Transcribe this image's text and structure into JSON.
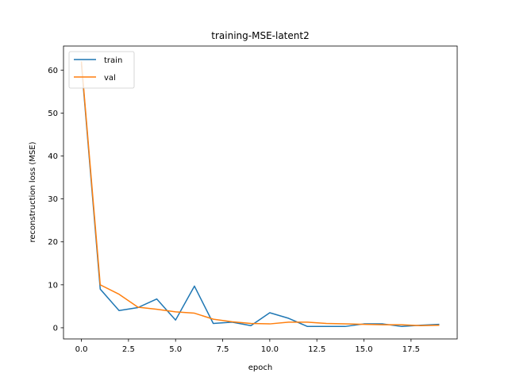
{
  "chart_data": {
    "type": "line",
    "title": "training-MSE-latent2",
    "xlabel": "epoch",
    "ylabel": "reconstruction loss (MSE)",
    "xlim": [
      -0.95,
      19.95
    ],
    "ylim": [
      -2.6,
      65.6
    ],
    "xticks": [
      0,
      2.5,
      5,
      7.5,
      10,
      12.5,
      15,
      17.5
    ],
    "xtick_labels": [
      "0.0",
      "2.5",
      "5.0",
      "7.5",
      "10.0",
      "12.5",
      "15.0",
      "17.5"
    ],
    "yticks": [
      0,
      10,
      20,
      30,
      40,
      50,
      60
    ],
    "ytick_labels": [
      "0",
      "10",
      "20",
      "30",
      "40",
      "50",
      "60"
    ],
    "grid": false,
    "legend_position": "upper-left",
    "x": [
      0,
      1,
      2,
      3,
      4,
      5,
      6,
      7,
      8,
      9,
      10,
      11,
      12,
      13,
      14,
      15,
      16,
      17,
      18,
      19
    ],
    "series": [
      {
        "name": "train",
        "color": "#1f77b4",
        "values": [
          61.5,
          9.0,
          4.0,
          4.7,
          6.7,
          1.8,
          9.7,
          1.0,
          1.3,
          0.5,
          3.5,
          2.2,
          0.3,
          0.3,
          0.3,
          0.9,
          0.9,
          0.3,
          0.6,
          0.8
        ]
      },
      {
        "name": "val",
        "color": "#ff7f0e",
        "values": [
          62.0,
          10.0,
          7.8,
          4.8,
          4.3,
          3.7,
          3.4,
          2.0,
          1.4,
          1.0,
          0.9,
          1.3,
          1.3,
          1.0,
          0.9,
          0.8,
          0.7,
          0.7,
          0.5,
          0.6
        ]
      }
    ]
  }
}
